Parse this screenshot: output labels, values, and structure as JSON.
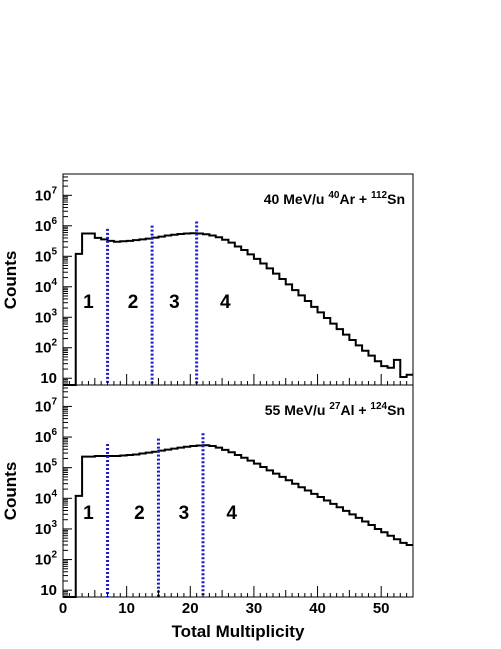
{
  "chart_data": {
    "type": "step-histogram",
    "xlabel": "Total Multiplicity",
    "ylabel": "Counts",
    "xlim": [
      0,
      55
    ],
    "ylim": [
      6,
      50000000
    ],
    "log_y": true,
    "x_ticks": [
      "0",
      "10",
      "20",
      "30",
      "40",
      "50"
    ],
    "y_ticks": [
      {
        "base": "10",
        "exp": "",
        "value": 10
      },
      {
        "base": "10",
        "exp": "2",
        "value": 100
      },
      {
        "base": "10",
        "exp": "3",
        "value": 1000
      },
      {
        "base": "10",
        "exp": "4",
        "value": 10000
      },
      {
        "base": "10",
        "exp": "5",
        "value": 100000
      },
      {
        "base": "10",
        "exp": "6",
        "value": 1000000
      },
      {
        "base": "10",
        "exp": "7",
        "value": 10000000
      }
    ],
    "colors": {
      "histogram": "#000000",
      "cut_lines": "#1a1acc"
    },
    "panels": [
      {
        "title": {
          "main": "40 MeV/u ",
          "a1": "40",
          "e1": "Ar + ",
          "a2": "112",
          "e2": "Sn"
        },
        "bin_edges": [
          0,
          1,
          2,
          3,
          4,
          5,
          6,
          7,
          8,
          9,
          10,
          11,
          12,
          13,
          14,
          15,
          16,
          17,
          18,
          19,
          20,
          21,
          22,
          23,
          24,
          25,
          26,
          27,
          28,
          29,
          30,
          31,
          32,
          33,
          34,
          35,
          36,
          37,
          38,
          39,
          40,
          41,
          42,
          43,
          44,
          45,
          46,
          47,
          48,
          49,
          50,
          51,
          52,
          53,
          54,
          55
        ],
        "counts": [
          0,
          1,
          120000,
          560000,
          560000,
          400000,
          360000,
          320000,
          300000,
          310000,
          320000,
          340000,
          360000,
          380000,
          410000,
          440000,
          480000,
          510000,
          540000,
          560000,
          570000,
          560000,
          530000,
          480000,
          420000,
          350000,
          280000,
          210000,
          160000,
          115000,
          82000,
          58000,
          40000,
          27000,
          18000,
          12000,
          7800,
          5200,
          3400,
          2200,
          1450,
          950,
          620,
          410,
          270,
          180,
          120,
          80,
          55,
          36,
          25,
          22,
          40,
          11,
          13
        ],
        "cuts": [
          7,
          14,
          21
        ],
        "region_labels": [
          "1",
          "2",
          "3",
          "4"
        ],
        "region_centers": [
          4,
          11,
          17.5,
          25.5
        ]
      },
      {
        "title": {
          "main": "55 MeV/u ",
          "a1": "27",
          "e1": "Al + ",
          "a2": "124",
          "e2": "Sn"
        },
        "bin_edges": [
          0,
          1,
          2,
          3,
          4,
          5,
          6,
          7,
          8,
          9,
          10,
          11,
          12,
          13,
          14,
          15,
          16,
          17,
          18,
          19,
          20,
          21,
          22,
          23,
          24,
          25,
          26,
          27,
          28,
          29,
          30,
          31,
          32,
          33,
          34,
          35,
          36,
          37,
          38,
          39,
          40,
          41,
          42,
          43,
          44,
          45,
          46,
          47,
          48,
          49,
          50,
          51,
          52,
          53,
          54,
          55
        ],
        "counts": [
          0,
          1,
          12000,
          230000,
          230000,
          240000,
          240000,
          240000,
          240000,
          250000,
          260000,
          270000,
          290000,
          310000,
          330000,
          360000,
          390000,
          420000,
          450000,
          480000,
          510000,
          530000,
          540000,
          510000,
          450000,
          380000,
          320000,
          260000,
          210000,
          170000,
          135000,
          105000,
          82000,
          64000,
          50000,
          39000,
          30000,
          23000,
          18000,
          14000,
          11000,
          8500,
          6600,
          5100,
          3900,
          3000,
          2300,
          1750,
          1350,
          1000,
          780,
          600,
          460,
          350,
          300
        ],
        "cuts": [
          7,
          15,
          22
        ],
        "region_labels": [
          "1",
          "2",
          "3",
          "4"
        ],
        "region_centers": [
          4,
          12,
          19,
          26.5
        ]
      }
    ]
  }
}
